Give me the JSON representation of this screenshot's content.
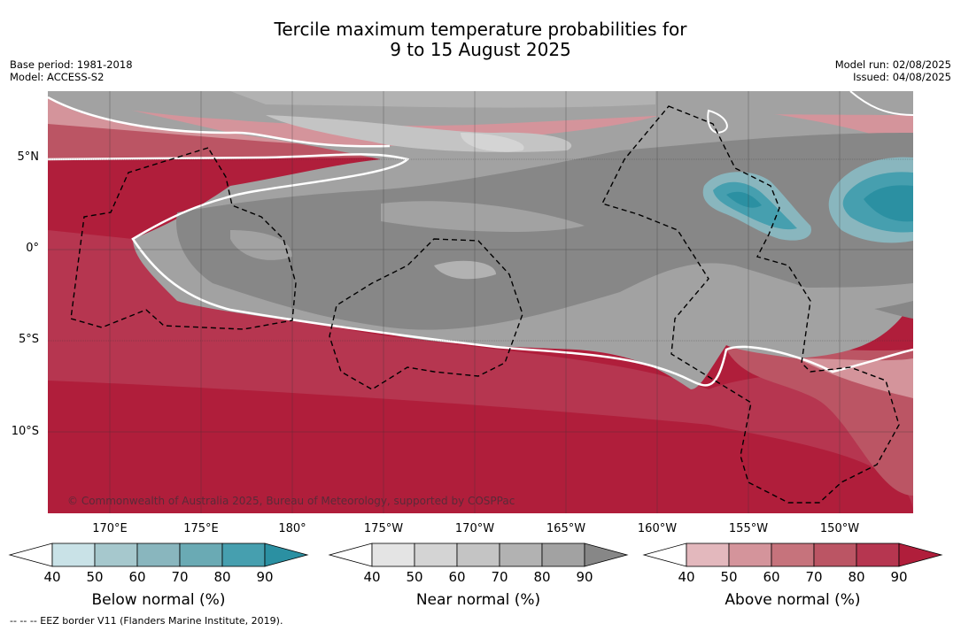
{
  "header": {
    "title_line1": "Tercile maximum temperature probabilities for",
    "title_line2": "9 to 15 August 2025",
    "base_period": "Base period: 1981-2018",
    "model": "Model: ACCESS-S2",
    "model_run": "Model run: 02/08/2025",
    "issued": "Issued: 04/08/2025"
  },
  "map": {
    "lat_labels": [
      "5°N",
      "0°",
      "5°S",
      "10°S"
    ],
    "lon_labels": [
      "170°E",
      "175°E",
      "180°",
      "175°W",
      "170°W",
      "165°W",
      "160°W",
      "155°W",
      "150°W"
    ],
    "copyright": "© Commonwealth of Australia 2025, Bureau of Meteorology, supported by COSPPac",
    "colors": {
      "above": [
        "#e3b8bd",
        "#d4949b",
        "#c6737c",
        "#bb5564",
        "#b63650",
        "#b01e3b"
      ],
      "near": [
        "#e4e4e4",
        "#d4d4d4",
        "#c4c4c4",
        "#b2b2b2",
        "#a2a2a2",
        "#878787"
      ],
      "below": [
        "#c9e2e7",
        "#a6c8cd",
        "#89b6be",
        "#6aaab4",
        "#469faf",
        "#2b90a2"
      ]
    }
  },
  "colorbars": {
    "ticks": [
      "40",
      "50",
      "60",
      "70",
      "80",
      "90"
    ],
    "below_label": "Below normal (%)",
    "near_label": "Near normal (%)",
    "above_label": "Above normal (%)"
  },
  "footer": {
    "eez_note": "-- -- -- EEZ border V11 (Flanders Marine Institute, 2019)."
  }
}
